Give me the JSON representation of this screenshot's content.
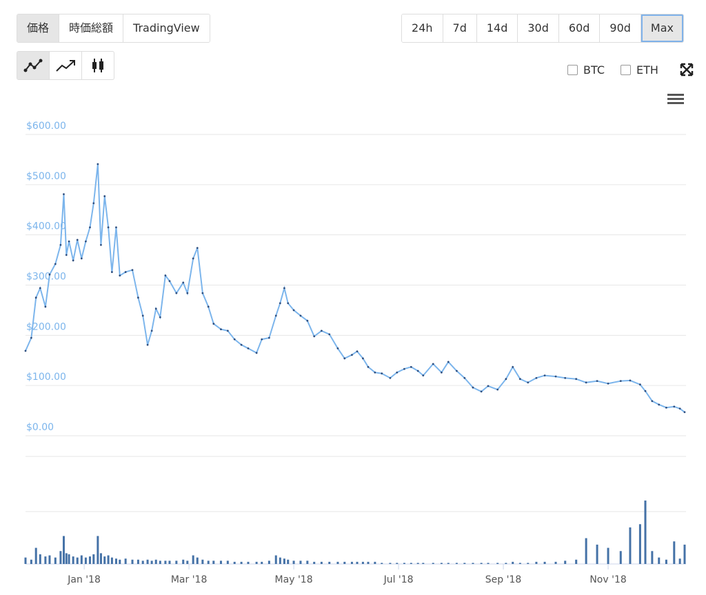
{
  "tabs": [
    "価格",
    "時価総額",
    "TradingView"
  ],
  "ranges": [
    "24h",
    "7d",
    "14d",
    "30d",
    "60d",
    "90d",
    "Max"
  ],
  "toggles": [
    "BTC",
    "ETH"
  ],
  "chart_data": {
    "type": "line",
    "x": [
      -1.12,
      -1.01,
      -0.92,
      -0.84,
      -0.74,
      -0.66,
      -0.55,
      -0.45,
      -0.39,
      -0.34,
      -0.29,
      -0.21,
      -0.13,
      -0.05,
      0.03,
      0.11,
      0.18,
      0.26,
      0.32,
      0.39,
      0.46,
      0.53,
      0.61,
      0.68,
      0.79,
      0.92,
      1.03,
      1.12,
      1.21,
      1.29,
      1.37,
      1.45,
      1.55,
      1.63,
      1.76,
      1.89,
      1.97,
      2.08,
      2.16,
      2.26,
      2.37,
      2.47,
      2.61,
      2.74,
      2.87,
      3.0,
      3.13,
      3.29,
      3.39,
      3.53,
      3.66,
      3.74,
      3.82,
      3.89,
      4.0,
      4.13,
      4.26,
      4.39,
      4.53,
      4.68,
      4.84,
      4.97,
      5.11,
      5.21,
      5.32,
      5.42,
      5.55,
      5.68,
      5.84,
      5.97,
      6.11,
      6.24,
      6.37,
      6.47,
      6.66,
      6.82,
      6.95,
      7.11,
      7.26,
      7.42,
      7.58,
      7.71,
      7.89,
      8.05,
      8.18,
      8.32,
      8.47,
      8.63,
      8.79,
      9.0,
      9.18,
      9.39,
      9.58,
      9.79,
      10.0,
      10.24,
      10.42,
      10.61,
      10.71,
      10.84,
      10.97,
      11.11,
      11.26,
      11.37,
      11.46
    ],
    "series": [
      {
        "name": "価格",
        "color": "#7cb5ec",
        "values": [
          169,
          195,
          275,
          294,
          257,
          321,
          342,
          380,
          481,
          360,
          387,
          349,
          390,
          353,
          387,
          415,
          463,
          541,
          380,
          477,
          415,
          326,
          415,
          319,
          326,
          330,
          275,
          239,
          181,
          209,
          253,
          236,
          319,
          308,
          284,
          305,
          284,
          353,
          374,
          284,
          257,
          223,
          212,
          209,
          192,
          181,
          174,
          165,
          192,
          195,
          239,
          264,
          294,
          264,
          250,
          239,
          229,
          198,
          209,
          202,
          174,
          154,
          161,
          168,
          154,
          137,
          126,
          124,
          115,
          126,
          133,
          137,
          129,
          120,
          143,
          126,
          147,
          129,
          115,
          96,
          88,
          99,
          92,
          113,
          137,
          113,
          106,
          115,
          120,
          118,
          115,
          113,
          106,
          109,
          104,
          109,
          110,
          102,
          89,
          69,
          62,
          56,
          58,
          54,
          47
        ]
      },
      {
        "name": "Volume",
        "color": "#4572a7",
        "axis": "volume",
        "values": [
          6,
          4,
          15,
          9,
          7,
          8,
          6,
          12,
          26,
          10,
          9,
          7,
          6,
          8,
          6,
          7,
          9,
          26,
          10,
          7,
          8,
          6,
          5,
          4,
          5,
          4,
          4,
          3,
          4,
          3,
          4,
          3,
          3,
          3,
          3,
          4,
          3,
          8,
          6,
          4,
          3,
          3,
          3,
          3,
          2,
          2,
          2,
          2,
          2,
          3,
          8,
          6,
          5,
          4,
          3,
          3,
          3,
          2,
          2,
          2,
          2,
          2,
          2,
          2,
          2,
          2,
          2,
          1,
          1,
          1,
          1,
          1,
          1,
          1,
          1,
          1,
          1,
          1,
          1,
          1,
          1,
          1,
          1,
          1,
          2,
          1,
          1,
          2,
          2,
          2,
          3,
          4,
          24,
          18,
          15,
          12,
          34,
          37,
          59,
          12,
          6,
          4,
          21,
          5,
          18
        ]
      }
    ],
    "xlim": [
      -1.12,
      11.46
    ],
    "xticks": [
      {
        "value": 0,
        "label": "Jan '18"
      },
      {
        "value": 2,
        "label": "Mar '18"
      },
      {
        "value": 4,
        "label": "May '18"
      },
      {
        "value": 6,
        "label": "Jul '18"
      },
      {
        "value": 8,
        "label": "Sep '18"
      },
      {
        "value": 10,
        "label": "Nov '18"
      }
    ],
    "ylim": [
      0,
      600
    ],
    "yticks": [
      {
        "value": 0,
        "label": "$0.00"
      },
      {
        "value": 100,
        "label": "$100.00"
      },
      {
        "value": 200,
        "label": "$200.00"
      },
      {
        "value": 300,
        "label": "$300.00"
      },
      {
        "value": 400,
        "label": "$400.00"
      },
      {
        "value": 500,
        "label": "$500.00"
      },
      {
        "value": 600,
        "label": "$600.00"
      }
    ],
    "volume_ylim": [
      0,
      100
    ],
    "grid": true
  }
}
